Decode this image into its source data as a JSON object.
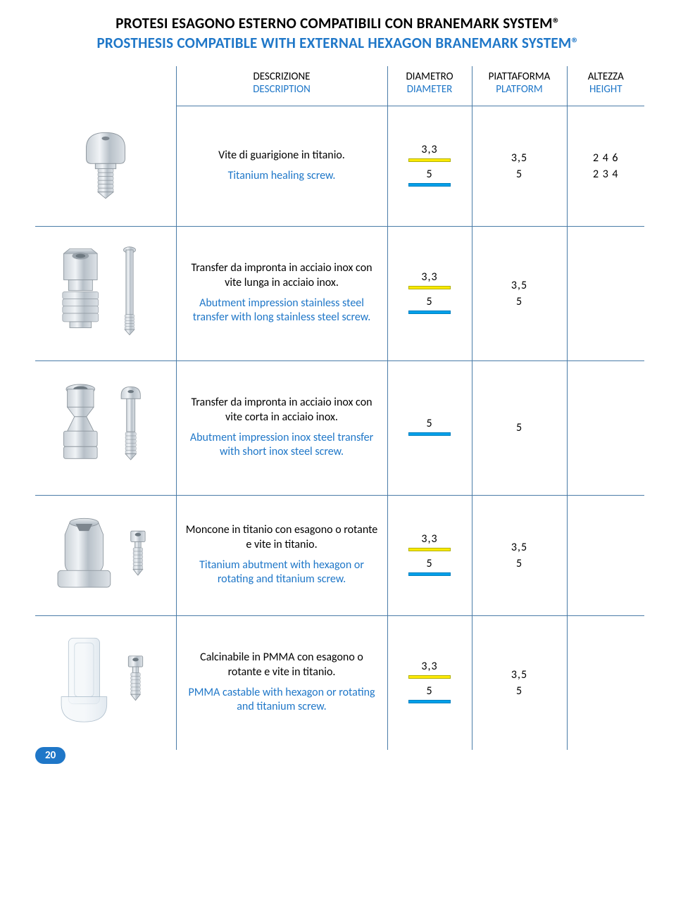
{
  "page_number": "20",
  "colors": {
    "accent_blue": "#1f77c8",
    "rule_blue": "#4a7ca8",
    "swatch_yellow": "#ffea00",
    "swatch_blue": "#00a0e9",
    "metal_light": "#d8dde2",
    "metal_dark": "#9aa3ab"
  },
  "title": {
    "it": "PROTESI ESAGONO ESTERNO COMPATIBILI CON BRANEMARK SYSTEM®",
    "en": "PROSTHESIS COMPATIBLE WITH EXTERNAL HEXAGON BRANEMARK SYSTEM®"
  },
  "headers": {
    "image": "",
    "description_it": "DESCRIZIONE",
    "description_en": "DESCRIPTION",
    "diameter_it": "DIAMETRO",
    "diameter_en": "DIAMETER",
    "platform_it": "PIATTAFORMA",
    "platform_en": "PLATFORM",
    "height_it": "ALTEZZA",
    "height_en": "HEIGHT"
  },
  "rows": [
    {
      "icon": "healing-screw",
      "desc_it": "Vite di guarigione in titanio.",
      "desc_en": "Titanium healing screw.",
      "diameter": [
        {
          "value": "3,3",
          "swatch": "yellow"
        },
        {
          "value": "5",
          "swatch": "blue"
        }
      ],
      "platform": [
        {
          "value": "3,5",
          "swatch": null
        },
        {
          "value": "5",
          "swatch": null
        }
      ],
      "height": [
        {
          "value": "2  4  6",
          "swatch": null
        },
        {
          "value": "2  3  4",
          "swatch": null
        }
      ]
    },
    {
      "icon": "transfer-long",
      "desc_it": "Transfer da impronta in acciaio inox con vite lunga in acciaio inox.",
      "desc_en": "Abutment impression stainless steel transfer with long stainless steel screw.",
      "diameter": [
        {
          "value": "3,3",
          "swatch": "yellow"
        },
        {
          "value": "5",
          "swatch": "blue"
        }
      ],
      "platform": [
        {
          "value": "3,5",
          "swatch": null
        },
        {
          "value": "5",
          "swatch": null
        }
      ],
      "height": []
    },
    {
      "icon": "transfer-short",
      "desc_it": "Transfer da impronta in acciaio inox con vite corta in acciaio inox.",
      "desc_en": "Abutment impression inox steel transfer with short inox steel screw.",
      "diameter": [
        {
          "value": "5",
          "swatch": "blue"
        }
      ],
      "platform": [
        {
          "value": "5",
          "swatch": null
        }
      ],
      "height": []
    },
    {
      "icon": "abutment-hex",
      "desc_it": "Moncone in titanio con esagono o rotante e vite in titanio.",
      "desc_en": "Titanium abutment with hexagon or rotating and titanium screw.",
      "diameter": [
        {
          "value": "3,3",
          "swatch": "yellow"
        },
        {
          "value": "5",
          "swatch": "blue"
        }
      ],
      "platform": [
        {
          "value": "3,5",
          "swatch": null
        },
        {
          "value": "5",
          "swatch": null
        }
      ],
      "height": []
    },
    {
      "icon": "pmma-castable",
      "desc_it": "Calcinabile in PMMA con esagono o rotante e vite in titanio.",
      "desc_en": "PMMA castable with hexagon or rotating and titanium screw.",
      "diameter": [
        {
          "value": "3,3",
          "swatch": "yellow"
        },
        {
          "value": "5",
          "swatch": "blue"
        }
      ],
      "platform": [
        {
          "value": "3,5",
          "swatch": null
        },
        {
          "value": "5",
          "swatch": null
        }
      ],
      "height": []
    }
  ]
}
